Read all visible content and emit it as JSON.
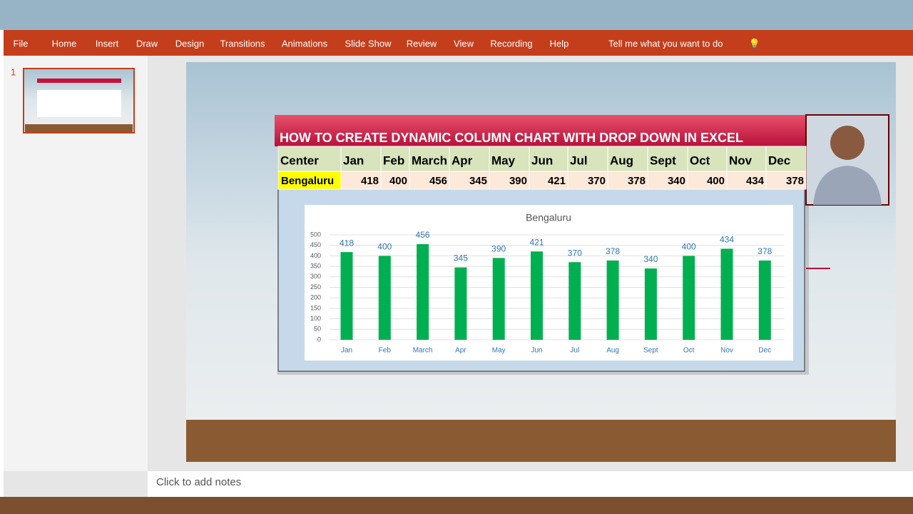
{
  "menu": [
    "File",
    "Home",
    "Insert",
    "Draw",
    "Design",
    "Transitions",
    "Animations",
    "Slide Show",
    "Review",
    "View",
    "Recording",
    "Help"
  ],
  "tell_me": "Tell me what you want to do",
  "slide_number": "1",
  "slide": {
    "title": "HOW TO CREATE DYNAMIC COLUMN CHART WITH DROP DOWN IN EXCEL",
    "table": {
      "header": [
        "Center",
        "Jan",
        "Feb",
        "March",
        "Apr",
        "May",
        "Jun",
        "Jul",
        "Aug",
        "Sept",
        "Oct",
        "Nov",
        "Dec"
      ],
      "row": [
        "Bengaluru",
        418,
        400,
        456,
        345,
        390,
        421,
        370,
        378,
        340,
        400,
        434,
        378
      ]
    },
    "chart": {
      "type": "bar",
      "title": "Bengaluru",
      "categories": [
        "Jan",
        "Feb",
        "March",
        "Apr",
        "May",
        "Jun",
        "Jul",
        "Aug",
        "Sept",
        "Oct",
        "Nov",
        "Dec"
      ],
      "values": [
        418,
        400,
        456,
        345,
        390,
        421,
        370,
        378,
        340,
        400,
        434,
        378
      ],
      "color": "#00b050",
      "label_color": "#2e75b6",
      "ylim": [
        0,
        500
      ],
      "yticks": [
        0,
        50,
        100,
        150,
        200,
        250,
        300,
        350,
        400,
        450,
        500
      ],
      "grid": true
    }
  },
  "notes": "Click to add notes"
}
